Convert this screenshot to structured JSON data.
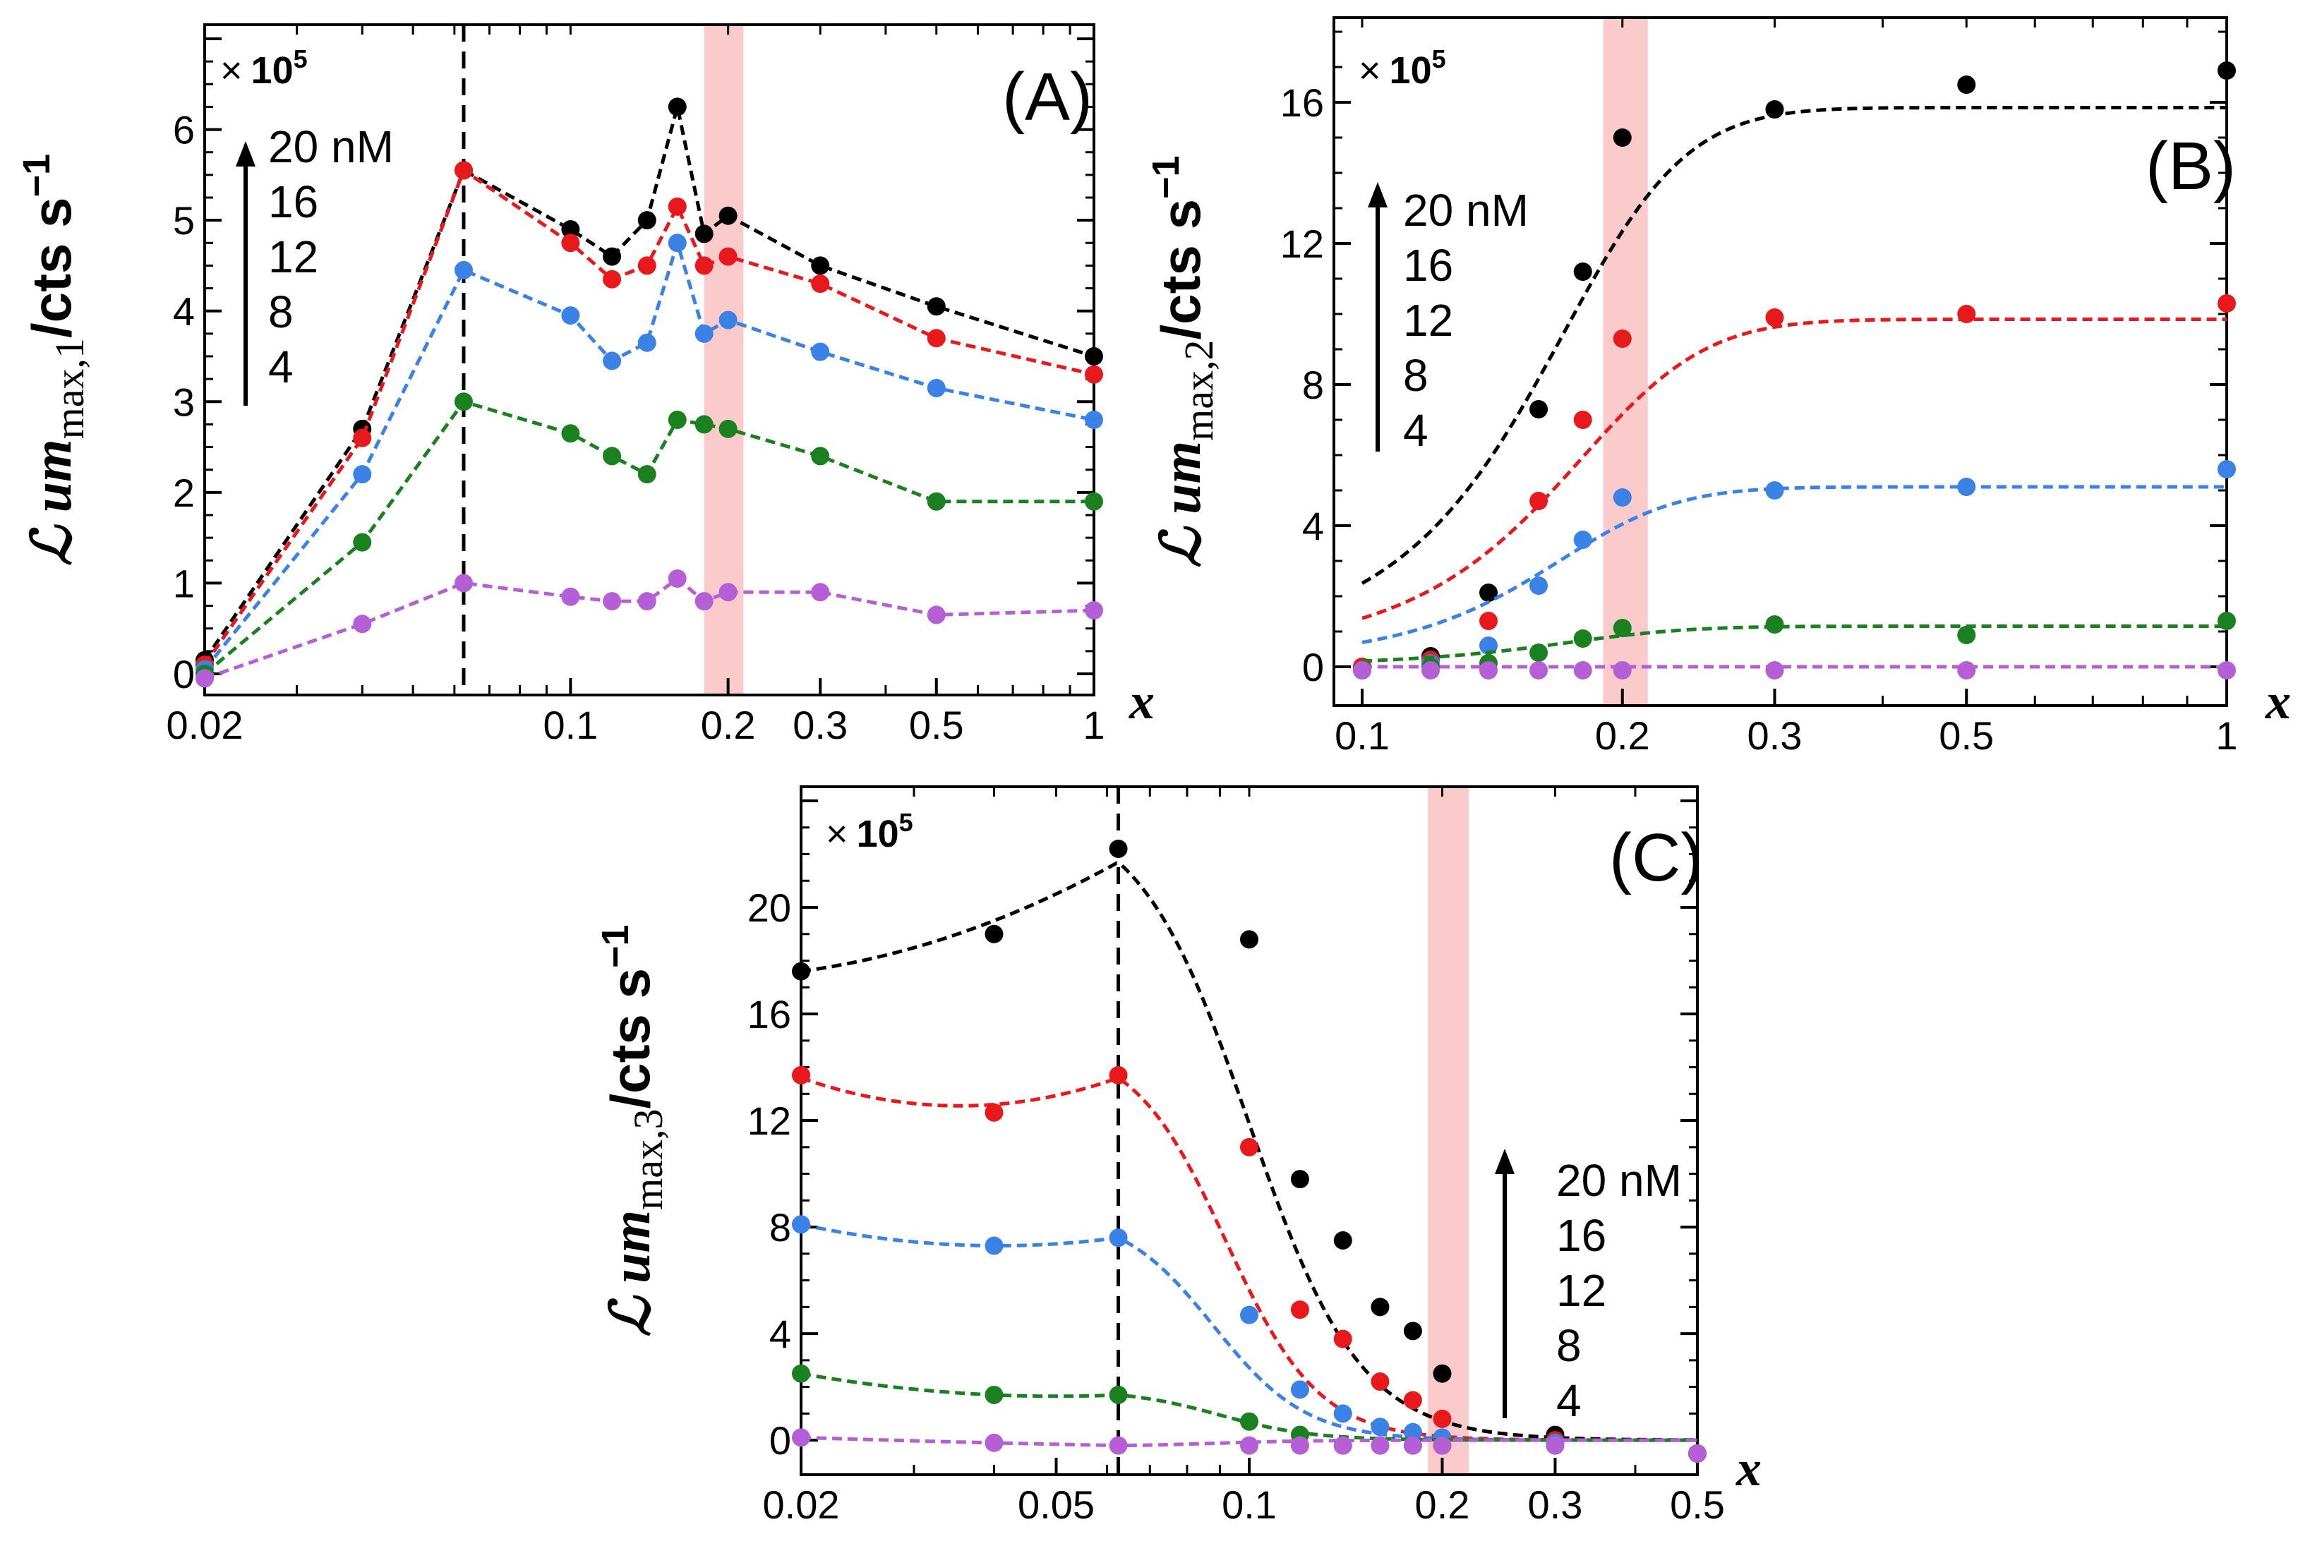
{
  "colors": {
    "20 nM": "#000000",
    "16": "#e8191c",
    "12": "#3b82e6",
    "8": "#1a8020",
    "4": "#b55fd6",
    "band": "#f9b8b8"
  },
  "chart_data": [
    {
      "panel_label": "(A)",
      "type": "line",
      "xscale": "log",
      "xlabel": "x",
      "ylabel_main": "ℒ um",
      "ylabel_sub": "max,1",
      "ylabel_units": "/cts s",
      "ylabel_exp": "−1",
      "multiplier_prefix": "×",
      "multiplier_value": "10",
      "multiplier_exp": "5",
      "xlim": [
        0.02,
        1
      ],
      "ylim": [
        0,
        7
      ],
      "x_ticks": [
        0.02,
        0.1,
        0.2,
        0.3,
        0.5,
        1
      ],
      "x_tick_labels": [
        "0.02",
        "0.1",
        "0.2",
        "0.3",
        "0.5",
        "1"
      ],
      "y_ticks": [
        0,
        1,
        2,
        3,
        4,
        5,
        6
      ],
      "y_tick_labels": [
        "0",
        "1",
        "2",
        "3",
        "4",
        "5",
        "6"
      ],
      "vline_x": 0.0625,
      "band_x": [
        0.18,
        0.214
      ],
      "legend_entries": [
        "20 nM",
        "16",
        "12",
        "8",
        "4"
      ],
      "legend_position": "top-left",
      "x": [
        0.02,
        0.04,
        0.0625,
        0.1,
        0.12,
        0.14,
        0.16,
        0.18,
        0.2,
        0.3,
        0.5,
        1.0
      ],
      "series": [
        {
          "name": "20 nM",
          "color": "#000000",
          "y": [
            0.15,
            2.7,
            5.55,
            4.9,
            4.6,
            5.0,
            6.25,
            4.85,
            5.05,
            4.5,
            4.05,
            3.5
          ]
        },
        {
          "name": "16",
          "color": "#e8191c",
          "y": [
            0.1,
            2.6,
            5.55,
            4.75,
            4.35,
            4.5,
            5.15,
            4.5,
            4.6,
            4.3,
            3.7,
            3.3
          ]
        },
        {
          "name": "12",
          "color": "#3b82e6",
          "y": [
            0.05,
            2.2,
            4.45,
            3.95,
            3.45,
            3.65,
            4.75,
            3.75,
            3.9,
            3.55,
            3.15,
            2.8
          ]
        },
        {
          "name": "8",
          "color": "#1a8020",
          "y": [
            0.0,
            1.45,
            3.0,
            2.65,
            2.4,
            2.2,
            2.8,
            2.75,
            2.7,
            2.4,
            1.9,
            1.9
          ]
        },
        {
          "name": "4",
          "color": "#b55fd6",
          "y": [
            -0.05,
            0.55,
            1.0,
            0.85,
            0.8,
            0.8,
            1.05,
            0.8,
            0.9,
            0.9,
            0.65,
            0.7
          ]
        }
      ]
    },
    {
      "panel_label": "(B)",
      "type": "line",
      "xscale": "log",
      "xlabel": "x",
      "ylabel_main": "ℒ um",
      "ylabel_sub": "max,2",
      "ylabel_units": "/cts s",
      "ylabel_exp": "−1",
      "multiplier_prefix": "×",
      "multiplier_value": "10",
      "multiplier_exp": "5",
      "xlim": [
        0.1,
        1
      ],
      "ylim": [
        -0.5,
        18
      ],
      "x_ticks": [
        0.1,
        0.2,
        0.3,
        0.5,
        1
      ],
      "x_tick_labels": [
        "0.1",
        "0.2",
        "0.3",
        "0.5",
        "1"
      ],
      "y_ticks": [
        0,
        4,
        8,
        12,
        16
      ],
      "y_tick_labels": [
        "0",
        "4",
        "8",
        "12",
        "16"
      ],
      "band_x": [
        0.19,
        0.214
      ],
      "legend_entries": [
        "20 nM",
        "16",
        "12",
        "8",
        "4"
      ],
      "legend_position": "top-left",
      "x": [
        0.1,
        0.12,
        0.14,
        0.16,
        0.18,
        0.2,
        0.3,
        0.5,
        1.0
      ],
      "series": [
        {
          "name": "20 nM",
          "color": "#000000",
          "y": [
            0.0,
            0.3,
            2.1,
            7.3,
            11.2,
            15.0,
            15.8,
            16.5,
            16.9
          ],
          "fit": {
            "top": 15.85,
            "x0": 0.158,
            "k": 30
          }
        },
        {
          "name": "16",
          "color": "#e8191c",
          "y": [
            0.0,
            0.2,
            1.3,
            4.7,
            7.0,
            9.3,
            9.9,
            10.0,
            10.3
          ],
          "fit": {
            "top": 9.85,
            "x0": 0.165,
            "k": 28
          }
        },
        {
          "name": "12",
          "color": "#3b82e6",
          "y": [
            -0.1,
            0.1,
            0.6,
            2.3,
            3.6,
            4.8,
            5.0,
            5.1,
            5.6
          ],
          "fit": {
            "top": 5.1,
            "x0": 0.158,
            "k": 32
          }
        },
        {
          "name": "8",
          "color": "#1a8020",
          "y": [
            -0.1,
            0.0,
            0.1,
            0.4,
            0.8,
            1.1,
            1.2,
            0.9,
            1.3
          ],
          "fit": {
            "top": 1.15,
            "x0": 0.16,
            "k": 30
          }
        },
        {
          "name": "4",
          "color": "#b55fd6",
          "y": [
            -0.1,
            -0.1,
            -0.1,
            -0.1,
            -0.1,
            -0.1,
            -0.1,
            -0.1,
            -0.1
          ],
          "fit": {
            "top": 0.0,
            "x0": 0.16,
            "k": 30
          }
        }
      ]
    },
    {
      "panel_label": "(C)",
      "type": "line",
      "xscale": "log",
      "xlabel": "x",
      "ylabel_main": "ℒ um",
      "ylabel_sub": "max,3",
      "ylabel_units": "/cts s",
      "ylabel_exp": "−1",
      "multiplier_prefix": "×",
      "multiplier_value": "10",
      "multiplier_exp": "5",
      "xlim": [
        0.02,
        0.5
      ],
      "ylim": [
        -0.5,
        24
      ],
      "x_ticks": [
        0.02,
        0.05,
        0.1,
        0.2,
        0.3,
        0.5
      ],
      "x_tick_labels": [
        "0.02",
        "0.05",
        "0.1",
        "0.2",
        "0.3",
        "0.5"
      ],
      "y_ticks": [
        0,
        4,
        8,
        12,
        16,
        20
      ],
      "y_tick_labels": [
        "0",
        "4",
        "8",
        "12",
        "16",
        "20"
      ],
      "vline_x": 0.0625,
      "band_x": [
        0.19,
        0.22
      ],
      "legend_entries": [
        "20 nM",
        "16",
        "12",
        "8",
        "4"
      ],
      "legend_position": "right",
      "x": [
        0.02,
        0.04,
        0.0625,
        0.1,
        0.12,
        0.14,
        0.16,
        0.18,
        0.2,
        0.3,
        0.5
      ],
      "series": [
        {
          "name": "20 nM",
          "color": "#000000",
          "y": [
            17.6,
            19.0,
            22.2,
            18.8,
            9.8,
            7.5,
            5.0,
            4.1,
            2.5,
            0.2,
            -0.5
          ],
          "fit": {
            "A": 17.6,
            "B": 19.5,
            "P": 21.7,
            "c": 0.1,
            "n": 5
          }
        },
        {
          "name": "16",
          "color": "#e8191c",
          "y": [
            13.7,
            12.3,
            13.7,
            11.0,
            4.9,
            3.8,
            2.2,
            1.5,
            0.8,
            0.0,
            -0.5
          ],
          "fit": {
            "A": 13.6,
            "B": 12.6,
            "P": 13.6,
            "c": 0.092,
            "n": 6
          }
        },
        {
          "name": "12",
          "color": "#3b82e6",
          "y": [
            8.1,
            7.3,
            7.6,
            4.7,
            1.9,
            1.0,
            0.5,
            0.3,
            0.1,
            -0.1,
            -0.5
          ],
          "fit": {
            "A": 8.1,
            "B": 7.3,
            "P": 7.6,
            "c": 0.088,
            "n": 6
          }
        },
        {
          "name": "8",
          "color": "#1a8020",
          "y": [
            2.5,
            1.7,
            1.7,
            0.7,
            0.2,
            -0.2,
            -0.2,
            -0.2,
            -0.2,
            -0.2,
            -0.5
          ],
          "fit": {
            "A": 2.5,
            "B": 1.7,
            "P": 1.7,
            "c": 0.09,
            "n": 6
          }
        },
        {
          "name": "4",
          "color": "#b55fd6",
          "y": [
            0.1,
            -0.1,
            -0.2,
            -0.2,
            -0.2,
            -0.2,
            -0.2,
            -0.2,
            -0.2,
            -0.2,
            -0.5
          ],
          "fit": {
            "A": 0.1,
            "B": -0.1,
            "P": -0.2,
            "c": 0.09,
            "n": 6
          }
        }
      ]
    }
  ]
}
